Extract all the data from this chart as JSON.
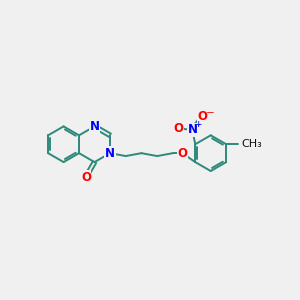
{
  "bg_color": "#f0f0f0",
  "bond_color": "#2d8a7a",
  "n_color": "#0000ff",
  "o_color": "#ff0000",
  "line_width": 1.4,
  "font_size": 8.5,
  "figsize": [
    3.0,
    3.0
  ],
  "dpi": 100,
  "xlim": [
    0,
    10
  ],
  "ylim": [
    0,
    10
  ]
}
